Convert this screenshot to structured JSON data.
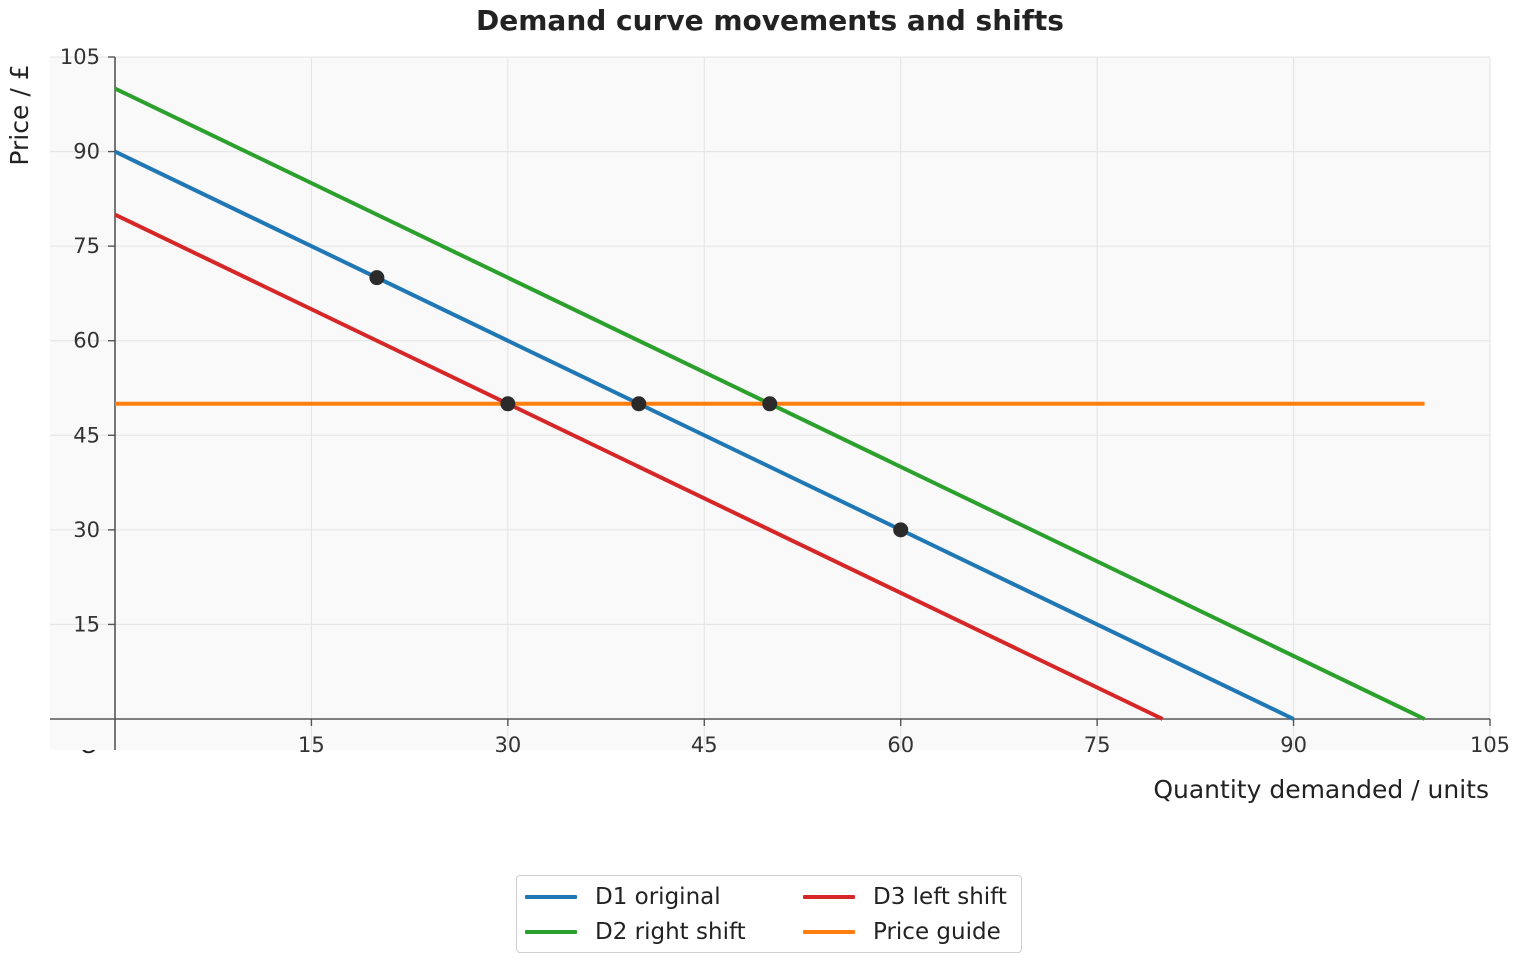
{
  "chart_data": {
    "type": "line",
    "title": "Demand curve movements and shifts",
    "xlabel": "Quantity demanded / units",
    "ylabel": "Price / £",
    "origin_label": "O",
    "xlim": [
      0,
      105
    ],
    "ylim": [
      0,
      105
    ],
    "x_ticks": [
      15,
      30,
      45,
      60,
      75,
      90,
      105
    ],
    "y_ticks": [
      15,
      30,
      45,
      60,
      75,
      90,
      105
    ],
    "grid": true,
    "legend_position": "bottom-center",
    "series": [
      {
        "name": "D1 original",
        "color": "#1f77b4",
        "points": [
          [
            0,
            90
          ],
          [
            90,
            0
          ]
        ]
      },
      {
        "name": "D2 right shift",
        "color": "#2ca02c",
        "points": [
          [
            0,
            100
          ],
          [
            100,
            0
          ]
        ]
      },
      {
        "name": "D3 left shift",
        "color": "#d62728",
        "points": [
          [
            0,
            80
          ],
          [
            80,
            0
          ]
        ]
      },
      {
        "name": "Price guide",
        "color": "#ff7f0e",
        "points": [
          [
            0,
            50
          ],
          [
            100,
            50
          ]
        ]
      }
    ],
    "markers": {
      "color": "#2b2b2b",
      "points": [
        [
          20,
          70
        ],
        [
          30,
          50
        ],
        [
          40,
          50
        ],
        [
          50,
          50
        ],
        [
          60,
          30
        ]
      ]
    }
  },
  "legend": {
    "items": [
      {
        "label": "D1 original",
        "color": "#1f77b4"
      },
      {
        "label": "D3 left shift",
        "color": "#d62728"
      },
      {
        "label": "D2 right shift",
        "color": "#2ca02c"
      },
      {
        "label": "Price guide",
        "color": "#ff7f0e"
      }
    ]
  }
}
